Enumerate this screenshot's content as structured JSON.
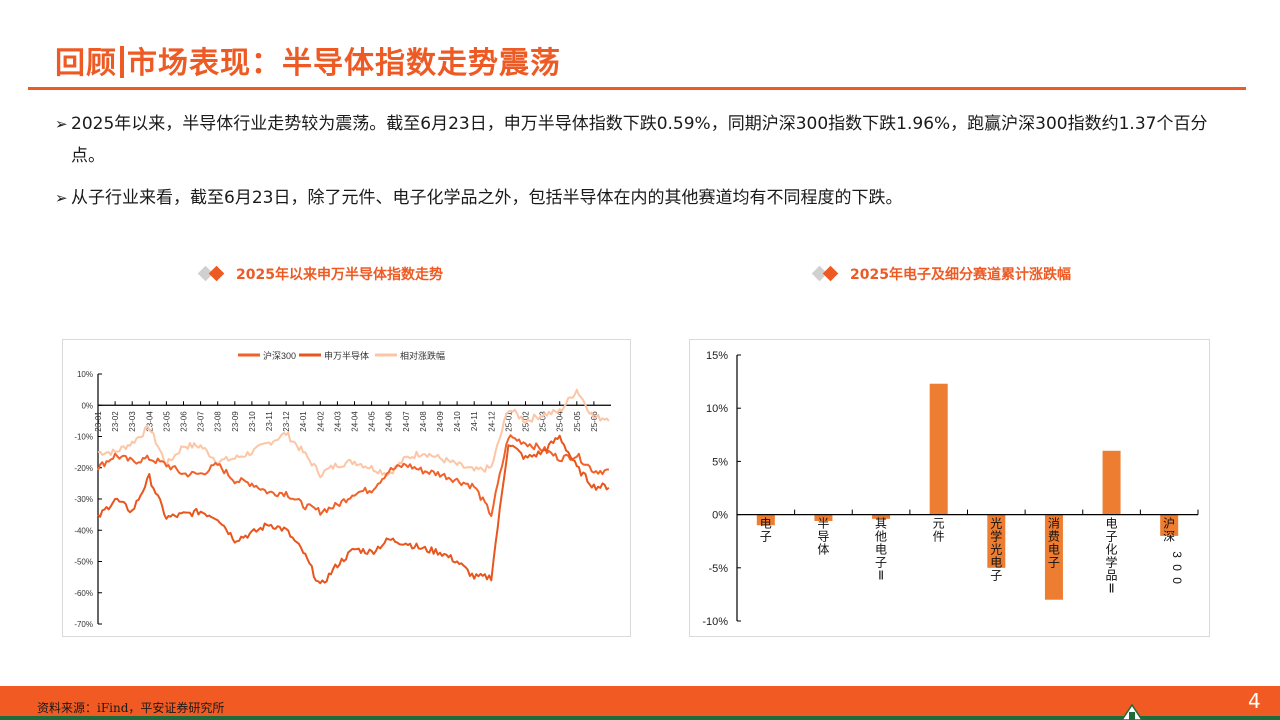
{
  "header": {
    "title_prefix": "回顾",
    "title_main": "市场表现：半导体指数走势震荡"
  },
  "bullets": [
    {
      "arrow": "➢",
      "text": "2025年以来，半导体行业走势较为震荡。截至6月23日，申万半导体指数下跌0.59%，同期沪深300指数下跌1.96%，跑赢沪深300指数约1.37个百分点。"
    },
    {
      "arrow": "➢",
      "text": "从子行业来看，截至6月23日，除了元件、电子化学品之外，包括半导体在内的其他赛道均有不同程度的下跌。"
    }
  ],
  "charts": {
    "left_title": "2025年以来申万半导体指数走势",
    "right_title": "2025年电子及细分赛道累计涨跌幅"
  },
  "footer": {
    "source": "资料来源：iFind，平安证券研究所",
    "page_number": "4"
  },
  "colors": {
    "accent": "#ee5a24",
    "hs300": "#f0622a",
    "sw_semi": "#e8561e",
    "relative": "#fcc6a6",
    "bar": "#ed7d31",
    "footer_bg": "#f15a22",
    "footer_line": "#1f6b3a"
  },
  "chart_data": [
    {
      "type": "line",
      "title": "2025年以来申万半导体指数走势",
      "legend": [
        "沪深300",
        "申万半导体",
        "相对涨跌幅"
      ],
      "legend_position": "top",
      "ylabel": "",
      "xlabel": "",
      "yticks": [
        "10%",
        "0%",
        "-10%",
        "-20%",
        "-30%",
        "-40%",
        "-50%",
        "-60%",
        "-70%"
      ],
      "ylim": [
        -70,
        10
      ],
      "categories": [
        "23-01",
        "23-02",
        "23-03",
        "23-04",
        "23-05",
        "23-06",
        "23-07",
        "23-08",
        "23-09",
        "23-10",
        "23-11",
        "23-12",
        "24-01",
        "24-02",
        "24-03",
        "24-04",
        "24-05",
        "24-06",
        "24-07",
        "24-08",
        "24-09",
        "24-10",
        "24-11",
        "24-12",
        "25-01",
        "25-02",
        "25-03",
        "25-04",
        "25-05",
        "25-06"
      ],
      "series": [
        {
          "name": "沪深300",
          "values": [
            -20,
            -16,
            -18,
            -17,
            -19,
            -22,
            -22,
            -19,
            -24,
            -25,
            -28,
            -28,
            -32,
            -34,
            -32,
            -28,
            -27,
            -21,
            -19,
            -21,
            -22,
            -24,
            -26,
            -35,
            -10,
            -12,
            -14,
            -17,
            -16,
            -21
          ]
        },
        {
          "name": "申万半导体",
          "values": [
            -36,
            -30,
            -34,
            -23,
            -36,
            -35,
            -34,
            -36,
            -43,
            -41,
            -38,
            -40,
            -47,
            -58,
            -51,
            -46,
            -47,
            -43,
            -44,
            -46,
            -47,
            -50,
            -55,
            -55,
            -12,
            -17,
            -15,
            -10,
            -20,
            -26
          ]
        },
        {
          "name": "相对涨跌幅",
          "values": [
            -15,
            -15,
            -12,
            -7,
            -19,
            -13,
            -13,
            -18,
            -17,
            -15,
            -12,
            -9,
            -15,
            -22,
            -19,
            -18,
            -20,
            -22,
            -17,
            -15,
            -17,
            -19,
            -21,
            -20,
            -1,
            -5,
            -3,
            -2,
            5,
            -4
          ]
        }
      ],
      "grid": false
    },
    {
      "type": "bar",
      "title": "2025年电子及细分赛道累计涨跌幅",
      "categories": [
        "电子",
        "半导体",
        "其他电子Ⅱ",
        "元件",
        "光学光电子",
        "消费电子",
        "电子化学品Ⅱ",
        "沪深300"
      ],
      "values": [
        -1.0,
        -0.6,
        -0.4,
        12.3,
        -5.0,
        -8.0,
        6.0,
        -2.0
      ],
      "yticks": [
        "15%",
        "10%",
        "5%",
        "0%",
        "-5%",
        "-10%"
      ],
      "ylim": [
        -10,
        15
      ],
      "xlabel": "",
      "ylabel": "",
      "grid": false
    }
  ]
}
